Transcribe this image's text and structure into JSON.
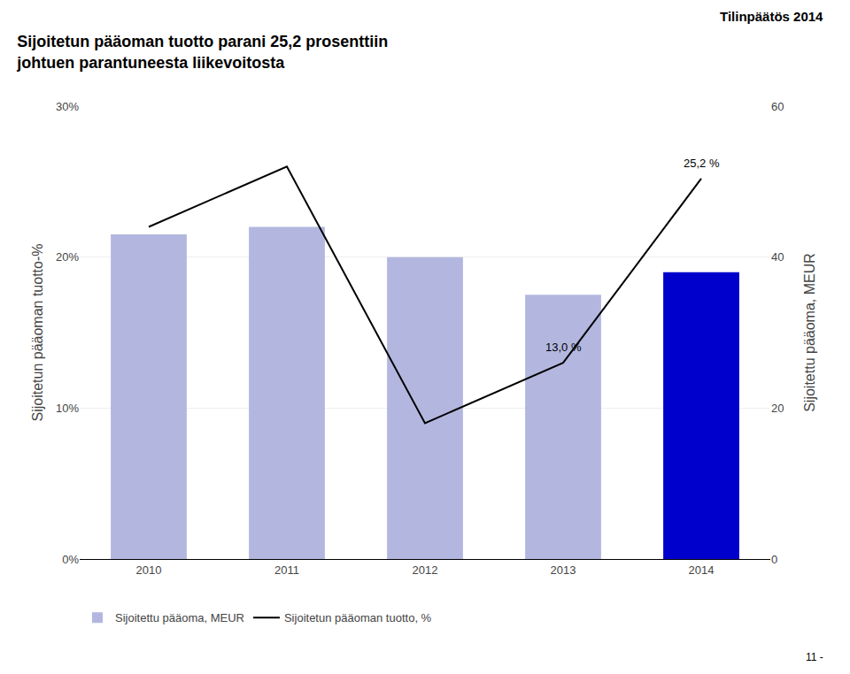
{
  "chart_data": {
    "type": "bar",
    "title": "Sijoitetun pääoman tuotto parani 25,2 prosenttiin\njohtuen parantuneesta liikevoitosta",
    "subtitle": "Tilinpäätös 2014",
    "categories": [
      "2010",
      "2011",
      "2012",
      "2013",
      "2014"
    ],
    "series": [
      {
        "name": "Sijoitettu pääoma, MEUR",
        "type": "bar",
        "axis": "y2",
        "colors": [
          "#b3b7e0",
          "#b3b7e0",
          "#b3b7e0",
          "#b3b7e0",
          "#0000cc"
        ],
        "values": [
          43,
          44,
          40,
          35,
          38
        ]
      },
      {
        "name": "Sijoitetun pääoman tuotto, %",
        "type": "line",
        "axis": "y",
        "color": "#000000",
        "values": [
          22.0,
          26.0,
          9.0,
          13.0,
          25.2
        ]
      }
    ],
    "ylabel": "Sijoitetun pääoman tuotto-%",
    "y2label": "Sijoitettu pääoma, MEUR",
    "ylim": [
      0,
      30
    ],
    "yticks": [
      {
        "value": 0,
        "label": "0%"
      },
      {
        "value": 10,
        "label": "10%"
      },
      {
        "value": 20,
        "label": "20%"
      },
      {
        "value": 30,
        "label": "30%"
      }
    ],
    "y2lim": [
      0,
      60
    ],
    "y2ticks": [
      0,
      20,
      40,
      60
    ],
    "grid": true,
    "legend": "bottom",
    "annotations": [
      {
        "text": "13,0 %",
        "x": "2013",
        "y": 13.0
      },
      {
        "text": "25,2 %",
        "x": "2014",
        "y": 25.2
      },
      {
        "text": "11 -"
      }
    ]
  }
}
